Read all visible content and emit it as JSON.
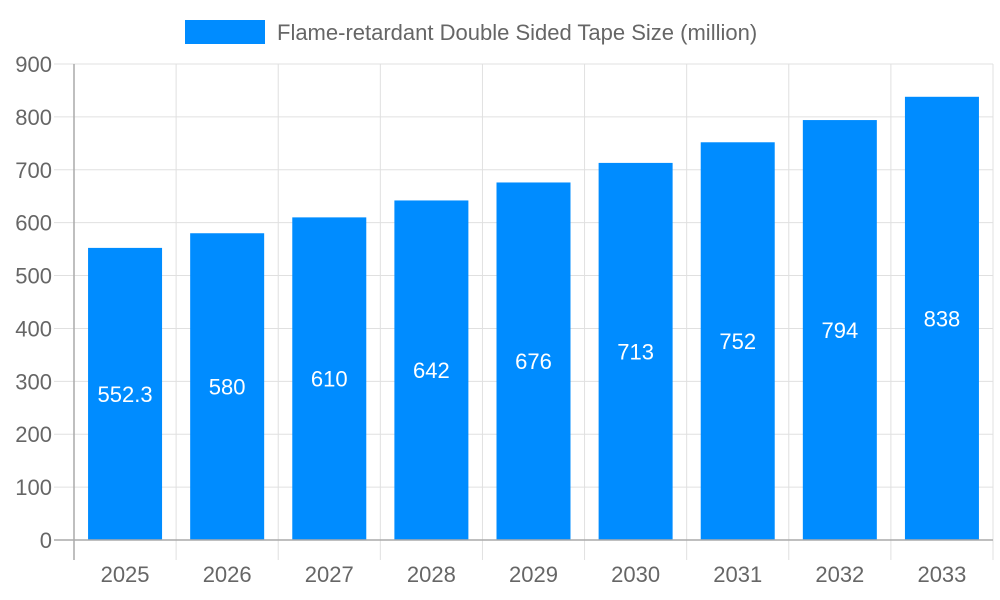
{
  "chart_data": {
    "type": "bar",
    "title": "",
    "xlabel": "",
    "ylabel": "",
    "categories": [
      "2025",
      "2026",
      "2027",
      "2028",
      "2029",
      "2030",
      "2031",
      "2032",
      "2033"
    ],
    "series": [
      {
        "name": "Flame-retardant Double Sided Tape Size (million)",
        "values": [
          552.3,
          580,
          610,
          642,
          676,
          713,
          752,
          794,
          838
        ],
        "labels": [
          "552.3",
          "580",
          "610",
          "642",
          "676",
          "713",
          "752",
          "794",
          "838"
        ],
        "color": "#008cff"
      }
    ],
    "ylim": [
      0,
      900
    ],
    "yticks": [
      0,
      100,
      200,
      300,
      400,
      500,
      600,
      700,
      800,
      900
    ],
    "grid": true,
    "legend": "top-center"
  }
}
